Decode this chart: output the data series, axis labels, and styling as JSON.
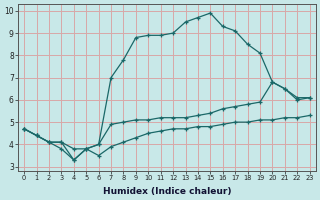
{
  "xlabel": "Humidex (Indice chaleur)",
  "bg_color": "#c8e8e8",
  "grid_color": "#d8a8a8",
  "line_color": "#1a6868",
  "xlim": [
    -0.5,
    23.5
  ],
  "ylim": [
    2.8,
    10.3
  ],
  "xticks": [
    0,
    1,
    2,
    3,
    4,
    5,
    6,
    7,
    8,
    9,
    10,
    11,
    12,
    13,
    14,
    15,
    16,
    17,
    18,
    19,
    20,
    21,
    22,
    23
  ],
  "yticks": [
    3,
    4,
    5,
    6,
    7,
    8,
    9,
    10
  ],
  "line1_x": [
    0,
    1,
    2,
    3,
    4,
    5,
    6,
    7,
    8,
    9,
    10,
    11,
    12,
    13,
    14,
    15,
    16,
    17,
    18,
    19,
    20,
    21,
    22,
    23
  ],
  "line1_y": [
    4.7,
    4.4,
    4.1,
    4.1,
    3.8,
    3.8,
    3.5,
    3.9,
    4.1,
    4.3,
    4.5,
    4.6,
    4.7,
    4.7,
    4.8,
    4.8,
    4.9,
    5.0,
    5.0,
    5.1,
    5.1,
    5.2,
    5.2,
    5.3
  ],
  "line2_x": [
    0,
    1,
    2,
    3,
    4,
    5,
    6,
    7,
    8,
    9,
    10,
    11,
    12,
    13,
    14,
    15,
    16,
    17,
    18,
    19,
    20,
    21,
    22,
    23
  ],
  "line2_y": [
    4.7,
    4.4,
    4.1,
    4.1,
    3.3,
    3.8,
    4.0,
    4.9,
    5.0,
    5.1,
    5.1,
    5.2,
    5.2,
    5.2,
    5.3,
    5.4,
    5.6,
    5.7,
    5.8,
    5.9,
    6.8,
    6.5,
    6.1,
    6.1
  ],
  "line3_x": [
    0,
    1,
    2,
    3,
    4,
    5,
    6,
    7,
    8,
    9,
    10,
    11,
    12,
    13,
    14,
    15,
    16,
    17,
    18,
    19,
    20,
    21,
    22,
    23
  ],
  "line3_y": [
    4.7,
    4.4,
    4.1,
    3.8,
    3.3,
    3.8,
    4.0,
    7.0,
    7.8,
    8.8,
    8.9,
    8.9,
    9.0,
    9.5,
    9.7,
    9.9,
    9.3,
    9.1,
    8.5,
    8.1,
    6.8,
    6.5,
    6.0,
    6.1
  ]
}
